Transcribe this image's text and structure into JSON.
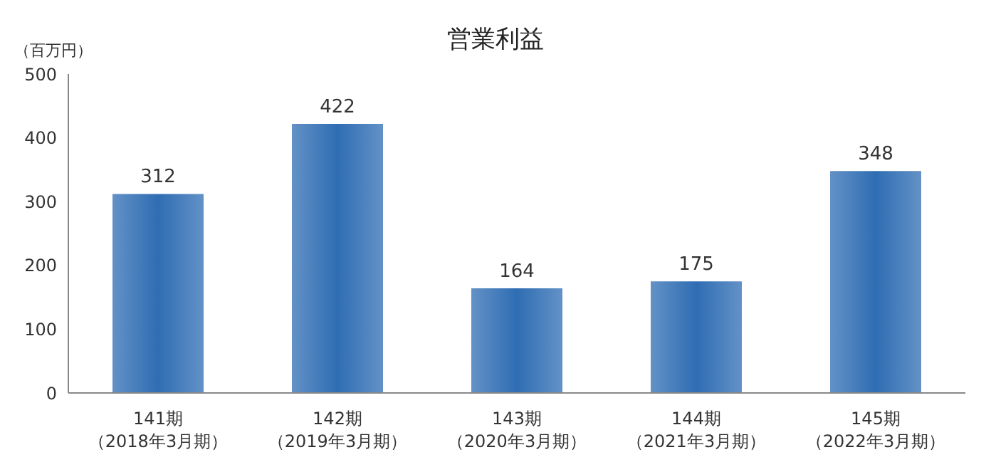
{
  "chart_data": {
    "type": "bar",
    "title": "営業利益",
    "ylabel": "（百万円）",
    "categories": [
      "141期（2018年3月期）",
      "142期（2019年3月期）",
      "143期（2020年3月期）",
      "144期（2021年3月期）",
      "145期（2022年3月期）"
    ],
    "values": [
      312,
      422,
      164,
      175,
      348
    ],
    "color": "#2f6db3",
    "ylim": [
      0,
      500
    ],
    "yticks": [
      0,
      100,
      200,
      300,
      400,
      500
    ],
    "grid": false,
    "data_labels": true
  }
}
